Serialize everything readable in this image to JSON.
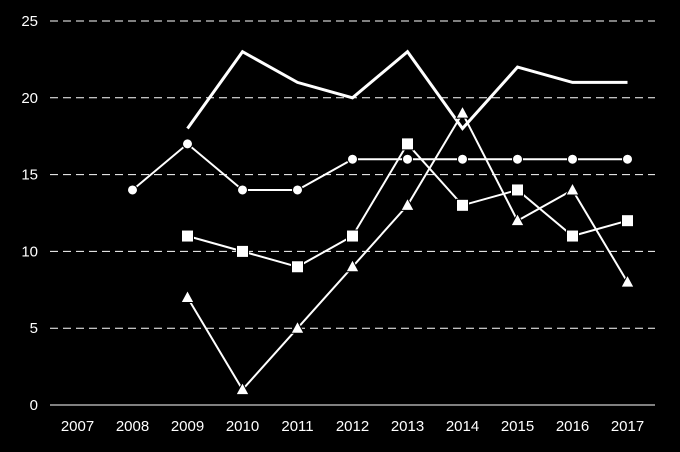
{
  "chart_data": {
    "type": "line",
    "title": "",
    "xlabel": "",
    "ylabel": "",
    "categories": [
      "2007",
      "2008",
      "2009",
      "2010",
      "2011",
      "2012",
      "2013",
      "2014",
      "2015",
      "2016",
      "2017"
    ],
    "ylim": [
      0,
      25
    ],
    "yticks": [
      0,
      5,
      10,
      15,
      20,
      25
    ],
    "grid": true,
    "legend": "none",
    "colors": {
      "background": "#000000",
      "foreground": "#ffffff"
    },
    "series": [
      {
        "marker": "none",
        "values": [
          null,
          null,
          18,
          23,
          21,
          20,
          23,
          18,
          22,
          21,
          21
        ]
      },
      {
        "marker": "circle",
        "values": [
          null,
          14,
          17,
          14,
          14,
          16,
          16,
          16,
          16,
          16,
          16
        ]
      },
      {
        "marker": "square",
        "values": [
          null,
          null,
          11,
          10,
          9,
          11,
          17,
          13,
          14,
          11,
          12
        ]
      },
      {
        "marker": "triangle",
        "values": [
          null,
          null,
          7,
          1,
          5,
          9,
          13,
          19,
          12,
          14,
          8
        ]
      }
    ]
  }
}
